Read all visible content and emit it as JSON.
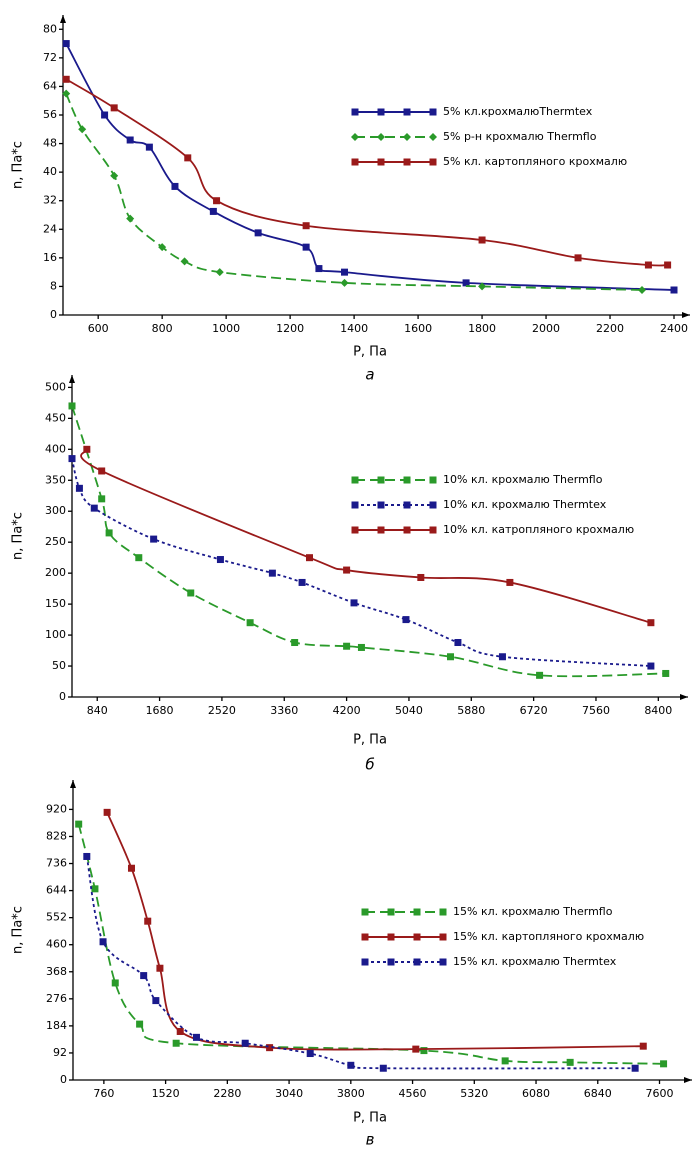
{
  "chart_data": [
    {
      "type": "line",
      "ylabel": "n, Па*с",
      "xlabel": "P, Па",
      "caption": "а",
      "xlim": [
        490,
        2450
      ],
      "ylim": [
        0,
        84
      ],
      "xticks": [
        600,
        800,
        1000,
        1200,
        1400,
        1600,
        1800,
        2000,
        2200,
        2400
      ],
      "yticks": [
        0,
        8,
        16,
        24,
        32,
        40,
        48,
        56,
        64,
        72,
        80
      ],
      "series": [
        {
          "name": "5% кл.крохмалюThermtex",
          "color": "#1a1a8c",
          "dash": "solid",
          "marker": "square",
          "x": [
            500,
            620,
            700,
            760,
            840,
            960,
            1100,
            1250,
            1290,
            1370,
            1750,
            2400
          ],
          "values": [
            76,
            56,
            49,
            47,
            36,
            29,
            23,
            19,
            13,
            12,
            9,
            7
          ]
        },
        {
          "name": "5% р-н крохмалю Thermflo",
          "color": "#2a9a2a",
          "dash": "dashed",
          "marker": "diamond",
          "x": [
            500,
            550,
            650,
            700,
            800,
            870,
            980,
            1370,
            1800,
            2300
          ],
          "values": [
            62,
            52,
            39,
            27,
            19,
            15,
            12,
            9,
            8,
            7
          ]
        },
        {
          "name": "5% кл. картопляного  крохмалю",
          "color": "#9a1a1a",
          "dash": "solid",
          "marker": "square",
          "x": [
            500,
            650,
            880,
            970,
            1250,
            1800,
            2100,
            2320,
            2380
          ],
          "values": [
            66,
            58,
            44,
            32,
            25,
            21,
            16,
            14,
            14
          ]
        }
      ]
    },
    {
      "type": "line",
      "ylabel": "n, Па*с",
      "xlabel": "P, Па",
      "caption": "б",
      "xlim": [
        500,
        8800
      ],
      "ylim": [
        0,
        520
      ],
      "xticks": [
        840,
        1680,
        2520,
        3360,
        4200,
        5040,
        5880,
        6720,
        7560,
        8400
      ],
      "yticks": [
        0,
        50,
        100,
        150,
        200,
        250,
        300,
        350,
        400,
        450,
        500
      ],
      "series": [
        {
          "name": "10% кл. крохмалю Thermflo",
          "color": "#2a9a2a",
          "dash": "dashed",
          "marker": "square",
          "x": [
            500,
            900,
            1000,
            1400,
            2100,
            2900,
            3500,
            4200,
            4400,
            5600,
            6800,
            8500
          ],
          "values": [
            470,
            320,
            265,
            225,
            168,
            120,
            88,
            82,
            80,
            65,
            35,
            38
          ]
        },
        {
          "name": "10% кл. крохмалю Thermtex",
          "color": "#1a1a8c",
          "dash": "dotted",
          "marker": "square",
          "x": [
            500,
            600,
            800,
            1600,
            2500,
            3200,
            3600,
            4300,
            5000,
            5700,
            6300,
            8300
          ],
          "values": [
            385,
            337,
            305,
            255,
            222,
            200,
            185,
            152,
            125,
            88,
            65,
            50
          ]
        },
        {
          "name": "10% кл. катропляного крохмалю",
          "color": "#9a1a1a",
          "dash": "solid",
          "marker": "square",
          "x": [
            700,
            900,
            3700,
            4200,
            5200,
            6400,
            8300
          ],
          "values": [
            400,
            365,
            225,
            205,
            193,
            185,
            120
          ]
        }
      ]
    },
    {
      "type": "line",
      "ylabel": "n, Па*с",
      "xlabel": "P, Па",
      "caption": "в",
      "xlim": [
        380,
        8000
      ],
      "ylim": [
        0,
        1020
      ],
      "xticks": [
        760,
        1520,
        2280,
        3040,
        3800,
        4560,
        5320,
        6080,
        6840,
        7600
      ],
      "yticks": [
        0,
        92,
        184,
        276,
        368,
        460,
        552,
        644,
        736,
        828,
        920
      ],
      "series": [
        {
          "name": "15% кл. крохмалю Thermflo",
          "color": "#2a9a2a",
          "dash": "dashed",
          "marker": "square",
          "x": [
            450,
            650,
            900,
            1200,
            1650,
            4700,
            5700,
            6500,
            7650
          ],
          "values": [
            870,
            650,
            330,
            190,
            125,
            100,
            65,
            60,
            55
          ]
        },
        {
          "name": "15% кл. картопляного крохмалю",
          "color": "#9a1a1a",
          "dash": "solid",
          "marker": "square",
          "x": [
            800,
            1100,
            1300,
            1450,
            1700,
            2800,
            4600,
            7400
          ],
          "values": [
            910,
            720,
            540,
            380,
            165,
            110,
            105,
            115
          ]
        },
        {
          "name": "15% кл. крохмалю Thermtex",
          "color": "#1a1a8c",
          "dash": "dotted",
          "marker": "square",
          "x": [
            550,
            750,
            1250,
            1400,
            1900,
            2500,
            3300,
            3800,
            4200,
            7300
          ],
          "values": [
            760,
            470,
            355,
            270,
            145,
            125,
            90,
            50,
            40,
            40
          ]
        }
      ]
    }
  ]
}
